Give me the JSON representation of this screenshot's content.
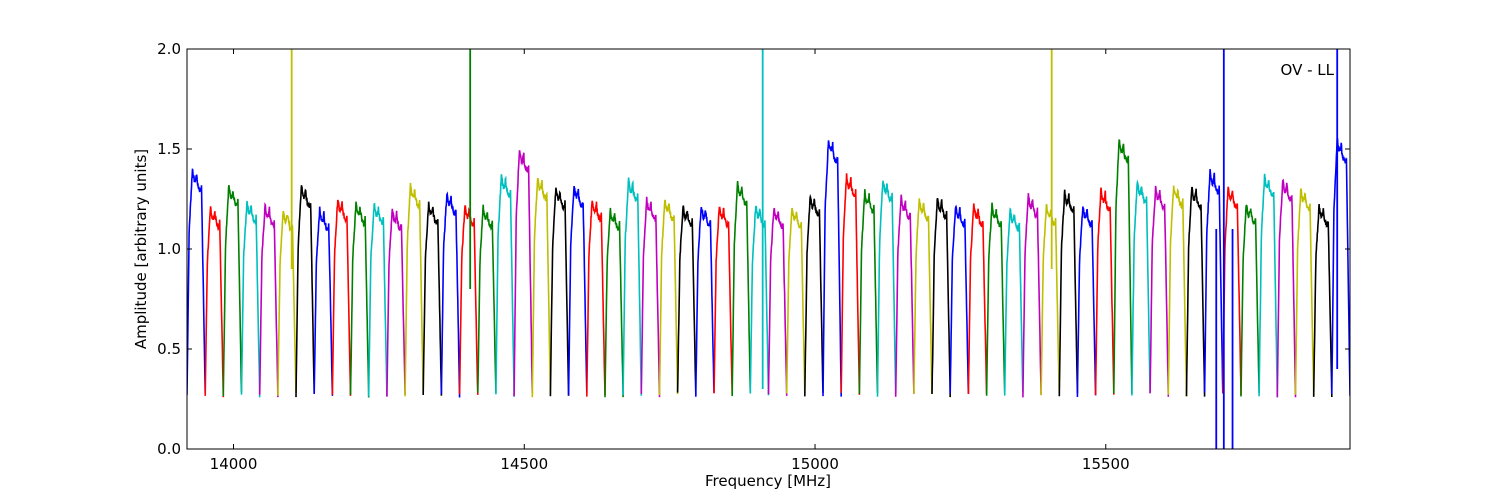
{
  "chart_data": {
    "type": "line",
    "title": "",
    "xlabel": "Frequency [MHz]",
    "ylabel": "Amplitude [arbitrary units]",
    "xlim": [
      13920,
      15920
    ],
    "ylim": [
      0.0,
      2.0
    ],
    "xticks": [
      {
        "value": 14000,
        "label": "14000"
      },
      {
        "value": 14500,
        "label": "14500"
      },
      {
        "value": 15000,
        "label": "15000"
      },
      {
        "value": 15500,
        "label": "15500"
      }
    ],
    "yticks": [
      {
        "value": 0.0,
        "label": "0.0"
      },
      {
        "value": 0.5,
        "label": "0.5"
      },
      {
        "value": 1.0,
        "label": "1.0"
      },
      {
        "value": 1.5,
        "label": "1.5"
      },
      {
        "value": 2.0,
        "label": "2.0"
      }
    ],
    "annotation": "OV - LL",
    "grid": false,
    "color_cycle": [
      "#0000ff",
      "#ff0000",
      "#008000",
      "#00bfbf",
      "#bf00bf",
      "#bfbf00",
      "#000000"
    ],
    "band_start": 13920,
    "band_width": 31.25,
    "band_count": 64,
    "band_peak": 1.25,
    "band_floor": 0.27,
    "band_peaks_extra": [
      1.4,
      1.21,
      1.32,
      1.24,
      1.22,
      1.2,
      1.32,
      1.2,
      1.25,
      1.23,
      1.23,
      1.2,
      1.32,
      1.23,
      1.28,
      1.22,
      1.21,
      1.37,
      1.5,
      1.36,
      1.31,
      1.32,
      1.25,
      1.2,
      1.35,
      1.25,
      1.25,
      1.22,
      1.22,
      1.22,
      1.33,
      1.22,
      1.21,
      1.21,
      1.27,
      1.55,
      1.37,
      1.29,
      1.35,
      1.26,
      1.25,
      1.26,
      1.22,
      1.22,
      1.22,
      1.2,
      1.27,
      1.22,
      1.29,
      1.22,
      1.3,
      1.55,
      1.34,
      1.31,
      1.32,
      1.31,
      1.39,
      1.31,
      1.23,
      1.37,
      1.35,
      1.3,
      1.22,
      1.55
    ],
    "spikes": [
      {
        "x": 14100,
        "y_low": 0.9,
        "y_high": 2.0,
        "color": "#bfbf00"
      },
      {
        "x": 14407,
        "y_low": 0.8,
        "y_high": 2.0,
        "color": "#008000"
      },
      {
        "x": 14910,
        "y_low": 0.3,
        "y_high": 2.0,
        "color": "#00bfbf"
      },
      {
        "x": 15407,
        "y_low": 0.9,
        "y_high": 2.0,
        "color": "#bfbf00"
      },
      {
        "x": 15703,
        "y_low": 0.0,
        "y_high": 2.0,
        "color": "#0000ff"
      },
      {
        "x": 15690,
        "y_low": 0.0,
        "y_high": 1.1,
        "color": "#0000ff"
      },
      {
        "x": 15718,
        "y_low": 0.0,
        "y_high": 1.1,
        "color": "#0000ff"
      },
      {
        "x": 15898,
        "y_low": 0.4,
        "y_high": 2.0,
        "color": "#0000ff"
      }
    ]
  }
}
